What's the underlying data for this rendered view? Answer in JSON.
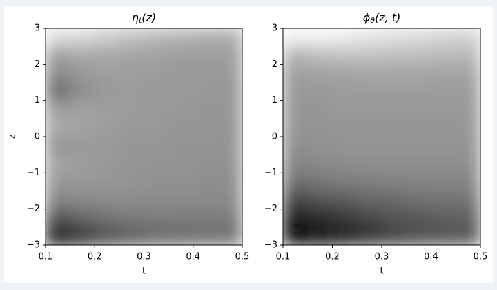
{
  "chart_data": [
    {
      "type": "heatmap",
      "cmap": "gray",
      "title": {
        "symbol": "η",
        "subscript": "t",
        "args": "(z)"
      },
      "xlabel": "t",
      "ylabel": "z",
      "xlim": [
        0.1,
        0.5
      ],
      "ylim": [
        -3,
        3
      ],
      "xticks": [
        0.1,
        0.2,
        0.3,
        0.4,
        0.5
      ],
      "yticks": [
        {
          "value": -3,
          "label": "−3"
        },
        {
          "value": -2,
          "label": "−2"
        },
        {
          "value": -1,
          "label": "−1"
        },
        0,
        1,
        2,
        3
      ],
      "xbins": [
        0.1,
        0.15,
        0.2,
        0.25,
        0.3,
        0.35,
        0.4,
        0.45,
        0.5
      ],
      "ybins": [
        3,
        2.5,
        2,
        1.5,
        1,
        0.5,
        0,
        -0.5,
        -1,
        -1.5,
        -2,
        -2.5,
        -3
      ],
      "values": [
        [
          0.88,
          0.85,
          0.8,
          0.76,
          0.72,
          0.7,
          0.68,
          0.67
        ],
        [
          0.62,
          0.66,
          0.66,
          0.64,
          0.63,
          0.62,
          0.62,
          0.62
        ],
        [
          0.55,
          0.6,
          0.62,
          0.62,
          0.61,
          0.6,
          0.6,
          0.6
        ],
        [
          0.42,
          0.55,
          0.6,
          0.61,
          0.6,
          0.6,
          0.6,
          0.59
        ],
        [
          0.62,
          0.64,
          0.62,
          0.61,
          0.6,
          0.6,
          0.59,
          0.59
        ],
        [
          0.66,
          0.64,
          0.62,
          0.6,
          0.6,
          0.59,
          0.59,
          0.58
        ],
        [
          0.58,
          0.6,
          0.6,
          0.59,
          0.59,
          0.58,
          0.58,
          0.58
        ],
        [
          0.64,
          0.62,
          0.6,
          0.59,
          0.58,
          0.58,
          0.57,
          0.57
        ],
        [
          0.6,
          0.6,
          0.59,
          0.58,
          0.57,
          0.57,
          0.56,
          0.56
        ],
        [
          0.52,
          0.54,
          0.55,
          0.55,
          0.55,
          0.54,
          0.54,
          0.54
        ],
        [
          0.32,
          0.4,
          0.45,
          0.48,
          0.49,
          0.49,
          0.49,
          0.49
        ],
        [
          0.08,
          0.2,
          0.3,
          0.36,
          0.4,
          0.42,
          0.43,
          0.44
        ]
      ]
    },
    {
      "type": "heatmap",
      "cmap": "gray",
      "title": {
        "symbol": "ϕ",
        "subscript": "θ",
        "args": "(z, t)"
      },
      "xlabel": "t",
      "xlim": [
        0.1,
        0.5
      ],
      "ylim": [
        -3,
        3
      ],
      "xticks": [
        0.1,
        0.2,
        0.3,
        0.4,
        0.5
      ],
      "yticks": [
        {
          "value": -3,
          "label": "−3"
        },
        {
          "value": -2,
          "label": "−2"
        },
        {
          "value": -1,
          "label": "−1"
        },
        0,
        1,
        2,
        3
      ],
      "xbins": [
        0.1,
        0.15,
        0.2,
        0.25,
        0.3,
        0.35,
        0.4,
        0.45,
        0.5
      ],
      "ybins": [
        3,
        2.5,
        2,
        1.5,
        1,
        0.5,
        0,
        -0.5,
        -1,
        -1.5,
        -2,
        -2.5,
        -3
      ],
      "values": [
        [
          0.95,
          0.95,
          0.93,
          0.9,
          0.88,
          0.86,
          0.84,
          0.82
        ],
        [
          0.7,
          0.74,
          0.76,
          0.76,
          0.75,
          0.74,
          0.73,
          0.72
        ],
        [
          0.62,
          0.63,
          0.64,
          0.65,
          0.65,
          0.65,
          0.64,
          0.64
        ],
        [
          0.6,
          0.6,
          0.61,
          0.61,
          0.61,
          0.61,
          0.61,
          0.61
        ],
        [
          0.59,
          0.59,
          0.6,
          0.6,
          0.6,
          0.6,
          0.6,
          0.6
        ],
        [
          0.58,
          0.58,
          0.59,
          0.59,
          0.59,
          0.59,
          0.59,
          0.59
        ],
        [
          0.56,
          0.57,
          0.58,
          0.58,
          0.58,
          0.58,
          0.58,
          0.58
        ],
        [
          0.52,
          0.54,
          0.55,
          0.56,
          0.56,
          0.56,
          0.56,
          0.56
        ],
        [
          0.44,
          0.47,
          0.49,
          0.5,
          0.51,
          0.52,
          0.52,
          0.52
        ],
        [
          0.28,
          0.32,
          0.36,
          0.4,
          0.42,
          0.44,
          0.45,
          0.46
        ],
        [
          0.12,
          0.16,
          0.22,
          0.28,
          0.32,
          0.35,
          0.37,
          0.38
        ],
        [
          0.04,
          0.07,
          0.14,
          0.2,
          0.26,
          0.3,
          0.32,
          0.34
        ]
      ]
    }
  ]
}
